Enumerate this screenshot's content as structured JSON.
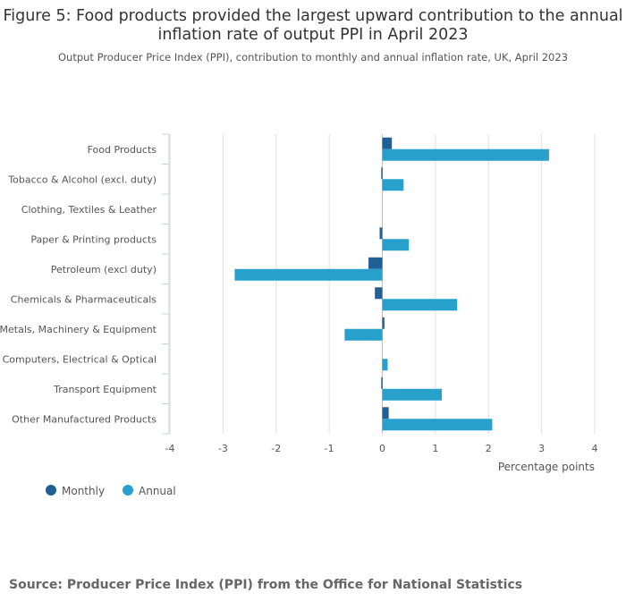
{
  "title": "Figure 5: Food products provided the largest upward contribution to the annual inflation rate of output PPI in April 2023",
  "subtitle": "Output Producer Price Index (PPI), contribution to monthly and annual inflation rate, UK, April 2023",
  "source": "Source: Producer Price Index (PPI) from the Office for National Statistics",
  "colors": {
    "monthly": "#206095",
    "annual": "#27a0cc",
    "grid": "#e0e0e0",
    "axis": "#c6d6e6"
  },
  "chart_data": {
    "type": "bar",
    "orientation": "horizontal",
    "categories": [
      "Food Products",
      "Tobacco & Alcohol (excl. duty)",
      "Clothing, Textiles & Leather",
      "Paper & Printing products",
      "Petroleum (excl duty)",
      "Chemicals & Pharmaceuticals",
      "Metals, Machinery & Equipment",
      "Computers, Electrical & Optical",
      "Transport Equipment",
      "Other Manufactured Products"
    ],
    "series": [
      {
        "name": "Monthly",
        "values": [
          0.18,
          -0.02,
          0.0,
          -0.05,
          -0.26,
          -0.14,
          0.04,
          0.0,
          -0.02,
          0.12
        ]
      },
      {
        "name": "Annual",
        "values": [
          3.14,
          0.4,
          0.0,
          0.5,
          -2.78,
          1.41,
          -0.71,
          0.1,
          1.12,
          2.07
        ]
      }
    ],
    "xlim": [
      -4,
      4
    ],
    "xticks": [
      "-4",
      "-3",
      "-2",
      "-1",
      "0",
      "1",
      "2",
      "3",
      "4"
    ],
    "xlabel": "Percentage points",
    "legend_position": "bottom-left"
  }
}
